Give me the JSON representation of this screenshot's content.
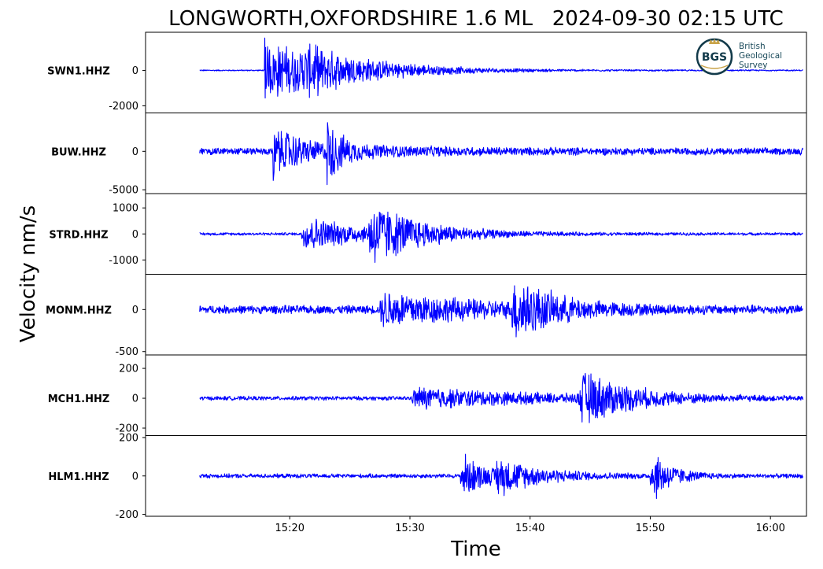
{
  "chart_data": {
    "type": "line",
    "title": "LONGWORTH,OXFORDSHIRE 1.6 ML   2024-09-30 02:15 UTC",
    "xlabel": "Time",
    "ylabel": "Velocity nm/s",
    "x_ticks": [
      "15:20",
      "15:30",
      "15:40",
      "15:50",
      "16:00"
    ],
    "x_tick_values": [
      20,
      30,
      40,
      50,
      60
    ],
    "xlim": [
      8,
      63
    ],
    "trace_span": [
      12.5,
      62.7
    ],
    "line_color": "#0000ff",
    "grid": false,
    "panels": [
      {
        "name": "SWN1.HHZ",
        "ylim": [
          -2400,
          2150
        ],
        "yticks": [
          0,
          -2000
        ],
        "ytick_labels": [
          "0",
          "-2000"
        ],
        "noise": 40,
        "events": [
          {
            "t": 17.9,
            "amp": 2000,
            "decay": 5.5,
            "spike": true
          },
          {
            "t": 21.0,
            "amp": 700,
            "decay": 6
          }
        ]
      },
      {
        "name": "BUW.HHZ",
        "ylim": [
          -5500,
          5000
        ],
        "yticks": [
          0,
          -5000
        ],
        "ytick_labels": [
          "0",
          "-5000"
        ],
        "noise": 500,
        "events": [
          {
            "t": 18.6,
            "amp": 4200,
            "decay": 1.2,
            "spike": true
          },
          {
            "t": 23.1,
            "amp": 4500,
            "decay": 1.0,
            "spike": true
          },
          {
            "t": 19.5,
            "amp": 1200,
            "decay": 8
          }
        ]
      },
      {
        "name": "STRD.HHZ",
        "ylim": [
          -1550,
          1550
        ],
        "yticks": [
          1000,
          0,
          -1000
        ],
        "ytick_labels": [
          "1000",
          "0",
          "-1000"
        ],
        "noise": 60,
        "events": [
          {
            "t": 21.0,
            "amp": 800,
            "decay": 5
          },
          {
            "t": 26.5,
            "amp": 1300,
            "decay": 4
          }
        ]
      },
      {
        "name": "MONM.HHZ",
        "ylim": [
          -540,
          420
        ],
        "yticks": [
          0,
          -500
        ],
        "ytick_labels": [
          "0",
          "-500"
        ],
        "noise": 55,
        "events": [
          {
            "t": 27.5,
            "amp": 230,
            "decay": 8
          },
          {
            "t": 38.5,
            "amp": 420,
            "decay": 3
          }
        ]
      },
      {
        "name": "MCH1.HHZ",
        "ylim": [
          -250,
          290
        ],
        "yticks": [
          200,
          0,
          -200
        ],
        "ytick_labels": [
          "200",
          "0",
          "-200"
        ],
        "noise": 15,
        "events": [
          {
            "t": 30.2,
            "amp": 80,
            "decay": 10
          },
          {
            "t": 44.0,
            "amp": 200,
            "decay": 4
          }
        ]
      },
      {
        "name": "HLM1.HHZ",
        "ylim": [
          -210,
          210
        ],
        "yticks": [
          200,
          0,
          -200
        ],
        "ytick_labels": [
          "200",
          "0",
          "-200"
        ],
        "noise": 12,
        "events": [
          {
            "t": 34.2,
            "amp": 140,
            "decay": 2
          },
          {
            "t": 37.0,
            "amp": 90,
            "decay": 4
          },
          {
            "t": 50.0,
            "amp": 170,
            "decay": 1.5
          }
        ]
      }
    ]
  },
  "logo": {
    "badge": "BGS",
    "line1": "British",
    "line2": "Geological",
    "line3": "Survey",
    "ring_color": "#123a4a",
    "text_color": "#1a4a5a",
    "crown_color": "#c9a44a"
  }
}
